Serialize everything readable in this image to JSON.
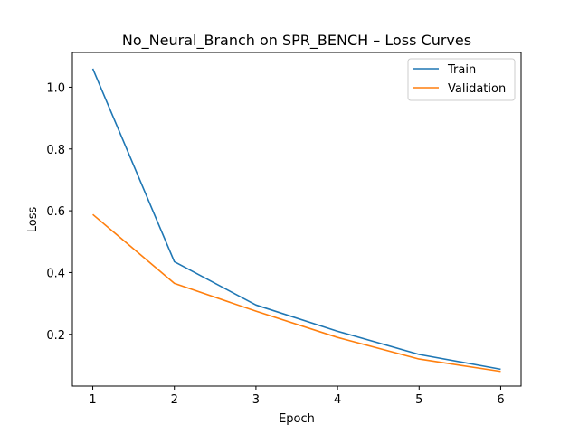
{
  "chart_data": {
    "type": "line",
    "title": "No_Neural_Branch on SPR_BENCH – Loss Curves",
    "xlabel": "Epoch",
    "ylabel": "Loss",
    "x": [
      1,
      2,
      3,
      4,
      5,
      6
    ],
    "xticks": [
      "1",
      "2",
      "3",
      "4",
      "5",
      "6"
    ],
    "yticks": [
      "0.2",
      "0.4",
      "0.6",
      "0.8",
      "1.0"
    ],
    "xlim": [
      0.75,
      6.25
    ],
    "ylim": [
      0.0325,
      1.1125
    ],
    "grid": false,
    "legend_position": "upper-right",
    "series": [
      {
        "name": "Train",
        "color": "#1f77b4",
        "values": [
          1.06,
          0.435,
          0.295,
          0.21,
          0.135,
          0.087
        ]
      },
      {
        "name": "Validation",
        "color": "#ff7f0e",
        "values": [
          0.588,
          0.365,
          0.275,
          0.19,
          0.12,
          0.08
        ]
      }
    ]
  }
}
